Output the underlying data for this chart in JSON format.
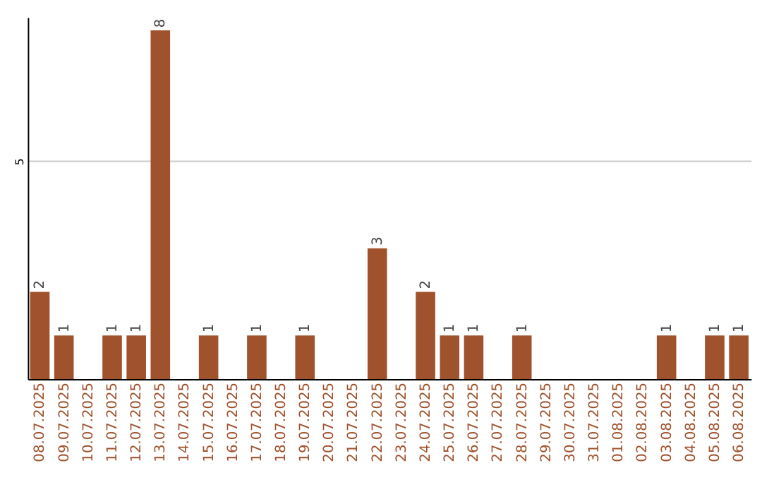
{
  "chart_data": {
    "type": "bar",
    "categories": [
      "08.07.2025",
      "09.07.2025",
      "10.07.2025",
      "11.07.2025",
      "12.07.2025",
      "13.07.2025",
      "14.07.2025",
      "15.07.2025",
      "16.07.2025",
      "17.07.2025",
      "18.07.2025",
      "19.07.2025",
      "20.07.2025",
      "21.07.2025",
      "22.07.2025",
      "23.07.2025",
      "24.07.2025",
      "25.07.2025",
      "26.07.2025",
      "27.07.2025",
      "28.07.2025",
      "29.07.2025",
      "30.07.2025",
      "31.07.2025",
      "01.08.2025",
      "02.08.2025",
      "03.08.2025",
      "04.08.2025",
      "05.08.2025",
      "06.08.2025"
    ],
    "values": [
      2,
      1,
      0,
      1,
      1,
      8,
      0,
      1,
      0,
      1,
      0,
      1,
      0,
      0,
      3,
      0,
      2,
      1,
      1,
      0,
      1,
      0,
      0,
      0,
      0,
      0,
      1,
      0,
      1,
      1
    ],
    "value_labels": [
      "2",
      "1",
      null,
      "1",
      "1",
      "8",
      null,
      "1",
      null,
      "1",
      null,
      "1",
      null,
      null,
      "3",
      null,
      "2",
      "1",
      "1",
      null,
      "1",
      null,
      null,
      null,
      null,
      null,
      "1",
      null,
      "1",
      "1"
    ],
    "color": "#a0522d",
    "ylim": [
      0,
      8.3
    ],
    "yticks": [
      {
        "value": 0,
        "label": null
      },
      5
    ],
    "grid": "y"
  }
}
